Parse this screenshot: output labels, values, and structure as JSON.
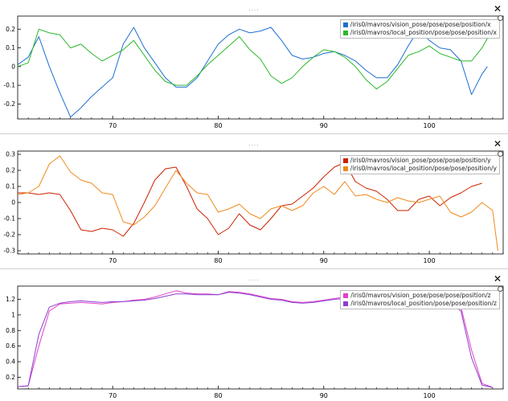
{
  "plots": [
    {
      "grip": "....",
      "close_label": "✕",
      "yticks": [
        0.2,
        0.1,
        0,
        -0.1,
        -0.2
      ],
      "ytick_labels": [
        "0.2",
        "0.1",
        "0",
        "-0.1",
        "-0.2"
      ],
      "xticks": [
        70,
        80,
        90,
        100
      ],
      "ylim": [
        -0.28,
        0.27
      ],
      "legend": [
        {
          "name": "/iris0/mavros/vision_pose/pose/pose/position/x",
          "color": "#1f6fd0"
        },
        {
          "name": "/iris0/mavros/local_position/pose/pose/position/x",
          "color": "#2ab82a"
        }
      ]
    },
    {
      "grip": "....",
      "close_label": "✕",
      "yticks": [
        0.3,
        0.2,
        0.1,
        0,
        -0.1,
        -0.2,
        -0.3
      ],
      "ytick_labels": [
        "0.3",
        "0.2",
        "0.1",
        "0",
        "-0.1",
        "-0.2",
        "-0.3"
      ],
      "xticks": [
        70,
        80,
        90,
        100
      ],
      "ylim": [
        -0.32,
        0.32
      ],
      "legend": [
        {
          "name": "/iris0/mavros/vision_pose/pose/pose/position/y",
          "color": "#cc2200"
        },
        {
          "name": "/iris0/mavros/local_position/pose/pose/position/y",
          "color": "#f08a1c"
        }
      ]
    },
    {
      "grip": "....",
      "close_label": "✕",
      "yticks": [
        1.2,
        1,
        0.8,
        0.6,
        0.4,
        0.2
      ],
      "ytick_labels": [
        "1.2",
        "1",
        "0.8",
        "0.6",
        "0.4",
        "0.2"
      ],
      "xticks": [
        70,
        80,
        90,
        100
      ],
      "ylim": [
        0.05,
        1.37
      ],
      "legend": [
        {
          "name": "/iris0/mavros/vision_pose/pose/pose/position/z",
          "color": "#e040c8"
        },
        {
          "name": "/iris0/mavros/local_position/pose/pose/position/z",
          "color": "#8a3fd0"
        }
      ]
    }
  ],
  "chart_data": [
    {
      "type": "line",
      "xlim": [
        61,
        107
      ],
      "ylim": [
        -0.28,
        0.27
      ],
      "series": [
        {
          "name": "/iris0/mavros/vision_pose/pose/pose/position/x",
          "x": [
            61,
            62,
            63,
            64,
            65,
            66,
            67,
            68,
            69,
            70,
            71,
            72,
            73,
            74,
            75,
            76,
            77,
            78,
            79,
            80,
            81,
            82,
            83,
            84,
            85,
            86,
            87,
            88,
            89,
            90,
            91,
            92,
            93,
            94,
            95,
            96,
            97,
            98,
            99,
            100,
            101,
            102,
            103,
            104,
            105,
            105.5
          ],
          "y": [
            0.01,
            0.05,
            0.16,
            0.0,
            -0.14,
            -0.27,
            -0.22,
            -0.16,
            -0.11,
            -0.06,
            0.12,
            0.21,
            0.1,
            0.02,
            -0.06,
            -0.11,
            -0.11,
            -0.06,
            0.03,
            0.12,
            0.17,
            0.2,
            0.18,
            0.19,
            0.21,
            0.14,
            0.06,
            0.04,
            0.05,
            0.07,
            0.08,
            0.06,
            0.03,
            -0.02,
            -0.06,
            -0.06,
            0.01,
            0.11,
            0.2,
            0.14,
            0.1,
            0.09,
            0.03,
            -0.15,
            -0.04,
            0.0
          ]
        },
        {
          "name": "/iris0/mavros/local_position/pose/pose/position/x",
          "x": [
            61,
            62,
            63,
            64,
            65,
            66,
            67,
            68,
            69,
            70,
            71,
            72,
            73,
            74,
            75,
            76,
            77,
            78,
            79,
            80,
            81,
            82,
            83,
            84,
            85,
            86,
            87,
            88,
            89,
            90,
            91,
            92,
            93,
            94,
            95,
            96,
            97,
            98,
            99,
            100,
            101,
            102,
            103,
            104,
            105,
            106,
            106.5
          ],
          "y": [
            0.0,
            0.02,
            0.2,
            0.18,
            0.17,
            0.1,
            0.12,
            0.07,
            0.03,
            0.06,
            0.09,
            0.14,
            0.06,
            -0.02,
            -0.08,
            -0.1,
            -0.1,
            -0.05,
            0.01,
            0.06,
            0.11,
            0.16,
            0.09,
            0.04,
            -0.05,
            -0.09,
            -0.06,
            0.0,
            0.05,
            0.09,
            0.08,
            0.05,
            0.0,
            -0.07,
            -0.12,
            -0.08,
            -0.01,
            0.06,
            0.08,
            0.11,
            0.07,
            0.05,
            0.03,
            0.03,
            0.1,
            0.2,
            0.25
          ]
        }
      ]
    },
    {
      "type": "line",
      "xlim": [
        61,
        107
      ],
      "ylim": [
        -0.32,
        0.32
      ],
      "series": [
        {
          "name": "/iris0/mavros/vision_pose/pose/pose/position/y",
          "x": [
            61,
            62,
            63,
            64,
            65,
            66,
            67,
            68,
            69,
            70,
            71,
            72,
            73,
            74,
            75,
            76,
            77,
            78,
            79,
            80,
            81,
            82,
            83,
            84,
            85,
            86,
            87,
            88,
            89,
            90,
            91,
            92,
            93,
            94,
            95,
            96,
            97,
            98,
            99,
            100,
            101,
            102,
            103,
            104,
            105
          ],
          "y": [
            0.06,
            0.06,
            0.05,
            0.06,
            0.05,
            -0.05,
            -0.17,
            -0.18,
            -0.16,
            -0.17,
            -0.21,
            -0.13,
            0.0,
            0.14,
            0.21,
            0.22,
            0.1,
            -0.04,
            -0.1,
            -0.2,
            -0.16,
            -0.07,
            -0.14,
            -0.17,
            -0.1,
            -0.02,
            -0.01,
            0.04,
            0.09,
            0.16,
            0.22,
            0.25,
            0.13,
            0.09,
            0.07,
            0.02,
            -0.05,
            -0.05,
            0.02,
            0.04,
            -0.02,
            0.03,
            0.06,
            0.1,
            0.12
          ]
        },
        {
          "name": "/iris0/mavros/local_position/pose/pose/position/y",
          "x": [
            61,
            62,
            63,
            64,
            65,
            66,
            67,
            68,
            69,
            70,
            71,
            72,
            73,
            74,
            75,
            76,
            77,
            78,
            79,
            80,
            81,
            82,
            83,
            84,
            85,
            86,
            87,
            88,
            89,
            90,
            91,
            92,
            93,
            94,
            95,
            96,
            97,
            98,
            99,
            100,
            101,
            102,
            103,
            104,
            105,
            106,
            106.5
          ],
          "y": [
            0.05,
            0.06,
            0.1,
            0.24,
            0.29,
            0.19,
            0.14,
            0.12,
            0.06,
            0.05,
            -0.12,
            -0.14,
            -0.09,
            -0.02,
            0.09,
            0.2,
            0.12,
            0.06,
            0.05,
            -0.06,
            -0.04,
            -0.01,
            -0.07,
            -0.1,
            -0.04,
            -0.02,
            -0.05,
            -0.02,
            0.06,
            0.1,
            0.05,
            0.13,
            0.04,
            0.05,
            0.02,
            0.0,
            0.03,
            0.01,
            0.0,
            0.02,
            0.04,
            -0.06,
            -0.09,
            -0.06,
            0.0,
            -0.05,
            -0.3
          ]
        }
      ]
    },
    {
      "type": "line",
      "xlim": [
        61,
        107
      ],
      "ylim": [
        0.05,
        1.37
      ],
      "series": [
        {
          "name": "/iris0/mavros/vision_pose/pose/pose/position/z",
          "x": [
            61,
            62,
            63,
            64,
            65,
            66,
            67,
            68,
            69,
            70,
            71,
            72,
            73,
            74,
            75,
            76,
            77,
            78,
            79,
            80,
            81,
            82,
            83,
            84,
            85,
            86,
            87,
            88,
            89,
            90,
            91,
            92,
            93,
            94,
            95,
            96,
            97,
            98,
            99,
            100,
            101,
            102,
            103,
            104,
            105,
            106
          ],
          "y": [
            0.08,
            0.09,
            0.6,
            1.05,
            1.14,
            1.15,
            1.16,
            1.15,
            1.14,
            1.16,
            1.17,
            1.19,
            1.2,
            1.23,
            1.27,
            1.31,
            1.28,
            1.27,
            1.27,
            1.26,
            1.3,
            1.29,
            1.27,
            1.24,
            1.21,
            1.2,
            1.17,
            1.16,
            1.17,
            1.19,
            1.21,
            1.23,
            1.22,
            1.19,
            1.18,
            1.17,
            1.19,
            1.2,
            1.22,
            1.22,
            1.2,
            1.18,
            1.1,
            0.55,
            0.12,
            0.07
          ]
        },
        {
          "name": "/iris0/mavros/local_position/pose/pose/position/z",
          "x": [
            61,
            62,
            63,
            64,
            65,
            66,
            67,
            68,
            69,
            70,
            71,
            72,
            73,
            74,
            75,
            76,
            77,
            78,
            79,
            80,
            81,
            82,
            83,
            84,
            85,
            86,
            87,
            88,
            89,
            90,
            91,
            92,
            93,
            94,
            95,
            96,
            97,
            98,
            99,
            100,
            101,
            102,
            103,
            104,
            105,
            106
          ],
          "y": [
            0.08,
            0.09,
            0.75,
            1.1,
            1.15,
            1.17,
            1.18,
            1.17,
            1.16,
            1.17,
            1.17,
            1.18,
            1.19,
            1.21,
            1.24,
            1.27,
            1.27,
            1.26,
            1.26,
            1.26,
            1.29,
            1.28,
            1.26,
            1.23,
            1.2,
            1.19,
            1.16,
            1.15,
            1.16,
            1.18,
            1.2,
            1.21,
            1.21,
            1.19,
            1.18,
            1.17,
            1.18,
            1.19,
            1.2,
            1.21,
            1.19,
            1.16,
            1.05,
            0.45,
            0.1,
            0.07
          ]
        }
      ]
    }
  ]
}
